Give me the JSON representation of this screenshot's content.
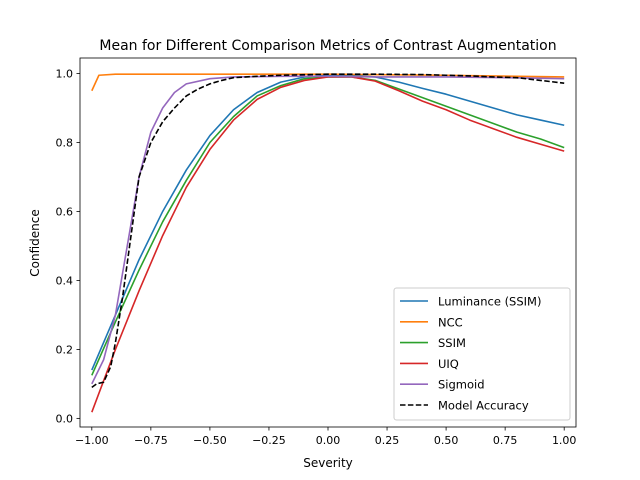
{
  "chart_data": {
    "type": "line",
    "title": "Mean for Different Comparison Metrics of Contrast Augmentation",
    "xlabel": "Severity",
    "ylabel": "Confidence",
    "xlim": [
      -1.05,
      1.05
    ],
    "ylim": [
      -0.025,
      1.045
    ],
    "xticks": [
      -1.0,
      -0.75,
      -0.5,
      -0.25,
      0.0,
      0.25,
      0.5,
      0.75,
      1.0
    ],
    "xtick_labels": [
      "−1.00",
      "−0.75",
      "−0.50",
      "−0.25",
      "0.00",
      "0.25",
      "0.50",
      "0.75",
      "1.00"
    ],
    "yticks": [
      0.0,
      0.2,
      0.4,
      0.6,
      0.8,
      1.0
    ],
    "ytick_labels": [
      "0.0",
      "0.2",
      "0.4",
      "0.6",
      "0.8",
      "1.0"
    ],
    "grid": false,
    "legend_position": "bottom-right",
    "series": [
      {
        "name": "Luminance (SSIM)",
        "color": "#1f77b4",
        "dash": "solid",
        "points": [
          [
            -1.0,
            0.14
          ],
          [
            -0.9,
            0.3
          ],
          [
            -0.8,
            0.46
          ],
          [
            -0.7,
            0.6
          ],
          [
            -0.6,
            0.72
          ],
          [
            -0.5,
            0.82
          ],
          [
            -0.4,
            0.895
          ],
          [
            -0.3,
            0.945
          ],
          [
            -0.2,
            0.975
          ],
          [
            -0.1,
            0.99
          ],
          [
            0.0,
            0.995
          ],
          [
            0.1,
            0.995
          ],
          [
            0.2,
            0.99
          ],
          [
            0.3,
            0.975
          ],
          [
            0.4,
            0.957
          ],
          [
            0.5,
            0.94
          ],
          [
            0.6,
            0.92
          ],
          [
            0.7,
            0.9
          ],
          [
            0.8,
            0.88
          ],
          [
            0.9,
            0.865
          ],
          [
            1.0,
            0.85
          ]
        ]
      },
      {
        "name": "NCC",
        "color": "#ff7f0e",
        "dash": "solid",
        "points": [
          [
            -1.0,
            0.95
          ],
          [
            -0.97,
            0.995
          ],
          [
            -0.9,
            0.998
          ],
          [
            -0.5,
            0.998
          ],
          [
            0.0,
            0.998
          ],
          [
            0.5,
            0.995
          ],
          [
            1.0,
            0.99
          ]
        ]
      },
      {
        "name": "SSIM",
        "color": "#2ca02c",
        "dash": "solid",
        "points": [
          [
            -1.0,
            0.125
          ],
          [
            -0.9,
            0.28
          ],
          [
            -0.8,
            0.43
          ],
          [
            -0.7,
            0.57
          ],
          [
            -0.6,
            0.69
          ],
          [
            -0.5,
            0.8
          ],
          [
            -0.4,
            0.875
          ],
          [
            -0.3,
            0.935
          ],
          [
            -0.2,
            0.965
          ],
          [
            -0.1,
            0.985
          ],
          [
            0.0,
            0.99
          ],
          [
            0.1,
            0.99
          ],
          [
            0.2,
            0.98
          ],
          [
            0.3,
            0.955
          ],
          [
            0.4,
            0.93
          ],
          [
            0.5,
            0.905
          ],
          [
            0.6,
            0.88
          ],
          [
            0.7,
            0.855
          ],
          [
            0.8,
            0.83
          ],
          [
            0.9,
            0.81
          ],
          [
            1.0,
            0.785
          ]
        ]
      },
      {
        "name": "UIQ",
        "color": "#d62728",
        "dash": "solid",
        "points": [
          [
            -1.0,
            0.018
          ],
          [
            -0.9,
            0.2
          ],
          [
            -0.8,
            0.37
          ],
          [
            -0.7,
            0.53
          ],
          [
            -0.6,
            0.67
          ],
          [
            -0.5,
            0.78
          ],
          [
            -0.4,
            0.865
          ],
          [
            -0.3,
            0.925
          ],
          [
            -0.2,
            0.96
          ],
          [
            -0.1,
            0.98
          ],
          [
            0.0,
            0.99
          ],
          [
            0.1,
            0.99
          ],
          [
            0.2,
            0.978
          ],
          [
            0.3,
            0.95
          ],
          [
            0.4,
            0.92
          ],
          [
            0.5,
            0.895
          ],
          [
            0.6,
            0.865
          ],
          [
            0.7,
            0.84
          ],
          [
            0.8,
            0.815
          ],
          [
            0.9,
            0.795
          ],
          [
            1.0,
            0.775
          ]
        ]
      },
      {
        "name": "Sigmoid",
        "color": "#9467bd",
        "dash": "solid",
        "points": [
          [
            -1.0,
            0.1
          ],
          [
            -0.95,
            0.17
          ],
          [
            -0.9,
            0.3
          ],
          [
            -0.85,
            0.5
          ],
          [
            -0.8,
            0.7
          ],
          [
            -0.75,
            0.83
          ],
          [
            -0.7,
            0.9
          ],
          [
            -0.65,
            0.945
          ],
          [
            -0.6,
            0.97
          ],
          [
            -0.5,
            0.985
          ],
          [
            -0.4,
            0.99
          ],
          [
            -0.2,
            0.992
          ],
          [
            0.0,
            0.992
          ],
          [
            0.2,
            0.99
          ],
          [
            0.5,
            0.99
          ],
          [
            0.75,
            0.988
          ],
          [
            1.0,
            0.985
          ]
        ]
      },
      {
        "name": "Model Accuracy",
        "color": "#000000",
        "dash": "dashed",
        "points": [
          [
            -1.0,
            0.09
          ],
          [
            -0.98,
            0.1
          ],
          [
            -0.95,
            0.105
          ],
          [
            -0.92,
            0.15
          ],
          [
            -0.9,
            0.22
          ],
          [
            -0.87,
            0.35
          ],
          [
            -0.83,
            0.55
          ],
          [
            -0.8,
            0.7
          ],
          [
            -0.75,
            0.8
          ],
          [
            -0.7,
            0.86
          ],
          [
            -0.65,
            0.9
          ],
          [
            -0.6,
            0.935
          ],
          [
            -0.55,
            0.955
          ],
          [
            -0.5,
            0.97
          ],
          [
            -0.45,
            0.98
          ],
          [
            -0.4,
            0.988
          ],
          [
            -0.3,
            0.992
          ],
          [
            -0.2,
            0.995
          ],
          [
            0.0,
            0.998
          ],
          [
            0.2,
            0.998
          ],
          [
            0.4,
            0.997
          ],
          [
            0.5,
            0.995
          ],
          [
            0.6,
            0.993
          ],
          [
            0.7,
            0.99
          ],
          [
            0.8,
            0.988
          ],
          [
            0.9,
            0.98
          ],
          [
            1.0,
            0.972
          ]
        ]
      }
    ]
  }
}
